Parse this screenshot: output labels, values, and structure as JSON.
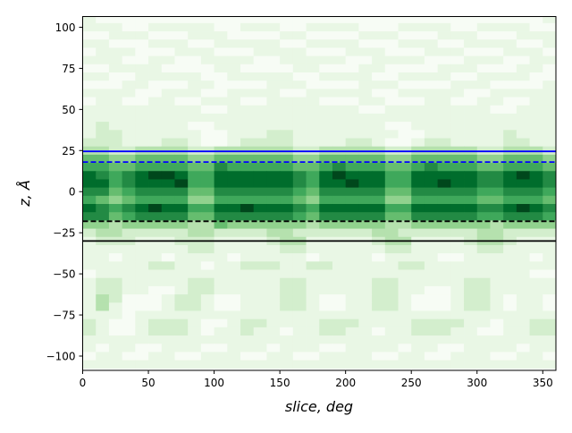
{
  "chart_data": {
    "type": "heatmap",
    "colormap": "Greens",
    "xlabel": "slice, deg",
    "ylabel": "z, Å",
    "xlim": [
      0,
      360
    ],
    "ylim": [
      -108.7,
      106.5
    ],
    "xticks": [
      0,
      50,
      100,
      150,
      200,
      250,
      300,
      350
    ],
    "yticks": [
      -100,
      -75,
      -50,
      -25,
      0,
      25,
      50,
      75,
      100
    ],
    "x_bin_width": 10,
    "z_bin_width": 5,
    "z_bins_top_to_bottom": [
      105,
      100,
      95,
      90,
      85,
      80,
      75,
      70,
      65,
      60,
      55,
      50,
      45,
      40,
      35,
      30,
      25,
      20,
      15,
      10,
      5,
      0,
      -5,
      -10,
      -15,
      -20,
      -25,
      -30,
      -35,
      -40,
      -45,
      -50,
      -55,
      -60,
      -65,
      -70,
      -75,
      -80,
      -85,
      -90,
      -95,
      -100,
      -105
    ],
    "value_scale": [
      0,
      9
    ],
    "values": [
      [
        1,
        0,
        0,
        0,
        0,
        0,
        0,
        0,
        0,
        0,
        0,
        0,
        0,
        0,
        0,
        0,
        0,
        0,
        0,
        0,
        0,
        0,
        0,
        0,
        0,
        0,
        0,
        0,
        0,
        0,
        0,
        0,
        0,
        0,
        0,
        1
      ],
      [
        1,
        1,
        1,
        0,
        0,
        1,
        1,
        1,
        1,
        1,
        0,
        0,
        1,
        1,
        1,
        0,
        0,
        1,
        1,
        1,
        1,
        0,
        0,
        0,
        1,
        1,
        1,
        1,
        0,
        0,
        1,
        1,
        1,
        1,
        0,
        0
      ],
      [
        0,
        0,
        1,
        1,
        1,
        0,
        0,
        0,
        1,
        1,
        1,
        0,
        0,
        0,
        0,
        1,
        1,
        0,
        0,
        0,
        0,
        1,
        1,
        1,
        0,
        0,
        0,
        1,
        1,
        1,
        0,
        0,
        0,
        1,
        1,
        1
      ],
      [
        1,
        1,
        0,
        0,
        0,
        1,
        1,
        1,
        0,
        0,
        1,
        1,
        1,
        1,
        1,
        0,
        0,
        1,
        1,
        1,
        1,
        0,
        0,
        0,
        1,
        1,
        1,
        0,
        0,
        1,
        1,
        1,
        1,
        0,
        0,
        1
      ],
      [
        0,
        1,
        1,
        1,
        0,
        0,
        0,
        1,
        1,
        1,
        0,
        0,
        0,
        1,
        1,
        1,
        1,
        0,
        0,
        0,
        1,
        1,
        1,
        0,
        0,
        0,
        1,
        1,
        1,
        0,
        0,
        0,
        1,
        1,
        1,
        0
      ],
      [
        1,
        1,
        1,
        0,
        0,
        1,
        1,
        0,
        0,
        1,
        1,
        1,
        1,
        0,
        0,
        1,
        1,
        1,
        1,
        1,
        0,
        0,
        1,
        1,
        1,
        1,
        0,
        0,
        0,
        1,
        1,
        1,
        0,
        0,
        1,
        1
      ],
      [
        0,
        0,
        1,
        1,
        1,
        1,
        0,
        0,
        0,
        0,
        1,
        1,
        0,
        0,
        0,
        0,
        1,
        1,
        0,
        0,
        0,
        1,
        1,
        0,
        0,
        0,
        0,
        1,
        1,
        1,
        0,
        0,
        0,
        1,
        1,
        0
      ],
      [
        1,
        1,
        0,
        0,
        1,
        1,
        1,
        1,
        1,
        0,
        0,
        1,
        1,
        1,
        1,
        1,
        0,
        0,
        1,
        1,
        1,
        1,
        0,
        0,
        1,
        1,
        1,
        1,
        0,
        0,
        1,
        1,
        1,
        1,
        0,
        0
      ],
      [
        0,
        0,
        0,
        1,
        1,
        0,
        0,
        0,
        1,
        1,
        0,
        0,
        0,
        0,
        1,
        1,
        1,
        0,
        0,
        0,
        0,
        1,
        1,
        1,
        0,
        0,
        0,
        0,
        1,
        1,
        1,
        0,
        0,
        0,
        0,
        1
      ],
      [
        1,
        1,
        1,
        1,
        0,
        0,
        1,
        1,
        1,
        0,
        0,
        1,
        1,
        1,
        1,
        0,
        0,
        1,
        1,
        1,
        1,
        1,
        0,
        0,
        1,
        1,
        1,
        1,
        1,
        0,
        0,
        1,
        1,
        1,
        1,
        1
      ],
      [
        0,
        1,
        1,
        0,
        0,
        1,
        1,
        0,
        0,
        1,
        1,
        1,
        0,
        0,
        1,
        1,
        1,
        1,
        0,
        0,
        0,
        1,
        1,
        0,
        0,
        0,
        1,
        1,
        0,
        0,
        1,
        1,
        0,
        0,
        1,
        1
      ],
      [
        1,
        1,
        1,
        1,
        1,
        1,
        1,
        1,
        1,
        0,
        0,
        1,
        1,
        1,
        1,
        1,
        1,
        1,
        1,
        1,
        1,
        0,
        0,
        1,
        1,
        1,
        1,
        1,
        1,
        1,
        1,
        0,
        0,
        1,
        1,
        1
      ],
      [
        1,
        1,
        1,
        1,
        1,
        1,
        1,
        1,
        1,
        1,
        1,
        1,
        1,
        1,
        1,
        1,
        1,
        1,
        1,
        1,
        1,
        1,
        1,
        1,
        1,
        1,
        1,
        1,
        1,
        1,
        1,
        1,
        1,
        1,
        1,
        1
      ],
      [
        1,
        2,
        1,
        1,
        1,
        1,
        1,
        1,
        0,
        0,
        1,
        1,
        1,
        1,
        1,
        1,
        1,
        1,
        1,
        1,
        1,
        1,
        1,
        0,
        0,
        1,
        1,
        1,
        1,
        1,
        1,
        1,
        1,
        1,
        1,
        1
      ],
      [
        1,
        2,
        2,
        1,
        1,
        1,
        1,
        1,
        1,
        0,
        0,
        1,
        1,
        1,
        2,
        2,
        1,
        1,
        1,
        1,
        1,
        1,
        1,
        1,
        0,
        0,
        1,
        1,
        1,
        1,
        1,
        1,
        2,
        1,
        1,
        1
      ],
      [
        2,
        2,
        2,
        1,
        1,
        1,
        2,
        2,
        1,
        0,
        0,
        1,
        2,
        2,
        2,
        2,
        1,
        1,
        1,
        1,
        2,
        2,
        1,
        0,
        0,
        1,
        2,
        2,
        1,
        1,
        1,
        1,
        2,
        2,
        1,
        1
      ],
      [
        3,
        3,
        2,
        2,
        3,
        3,
        3,
        3,
        2,
        2,
        3,
        3,
        3,
        3,
        3,
        3,
        2,
        2,
        3,
        3,
        3,
        3,
        3,
        2,
        2,
        3,
        3,
        3,
        3,
        3,
        2,
        2,
        3,
        3,
        3,
        2
      ],
      [
        5,
        5,
        4,
        4,
        5,
        5,
        5,
        5,
        4,
        4,
        5,
        5,
        5,
        5,
        5,
        5,
        4,
        4,
        5,
        5,
        5,
        5,
        5,
        4,
        4,
        5,
        5,
        5,
        5,
        5,
        4,
        4,
        5,
        5,
        5,
        4
      ],
      [
        6,
        6,
        5,
        5,
        6,
        6,
        6,
        6,
        5,
        5,
        7,
        6,
        6,
        6,
        6,
        6,
        5,
        5,
        6,
        7,
        6,
        6,
        6,
        5,
        5,
        6,
        7,
        6,
        6,
        6,
        5,
        5,
        6,
        6,
        6,
        5
      ],
      [
        8,
        7,
        6,
        7,
        8,
        9,
        9,
        8,
        6,
        6,
        8,
        8,
        8,
        8,
        8,
        8,
        7,
        6,
        8,
        9,
        8,
        8,
        8,
        6,
        6,
        8,
        8,
        8,
        8,
        8,
        7,
        7,
        8,
        9,
        8,
        7
      ],
      [
        8,
        8,
        6,
        7,
        8,
        8,
        8,
        9,
        6,
        6,
        8,
        8,
        8,
        8,
        8,
        8,
        7,
        6,
        8,
        8,
        9,
        8,
        8,
        6,
        6,
        8,
        8,
        9,
        8,
        8,
        7,
        7,
        8,
        8,
        8,
        7
      ],
      [
        7,
        7,
        5,
        6,
        7,
        7,
        7,
        7,
        5,
        5,
        7,
        7,
        7,
        7,
        7,
        7,
        6,
        5,
        7,
        7,
        7,
        7,
        7,
        5,
        5,
        7,
        7,
        7,
        7,
        7,
        6,
        6,
        7,
        7,
        7,
        6
      ],
      [
        6,
        5,
        4,
        5,
        6,
        6,
        6,
        6,
        4,
        4,
        6,
        6,
        6,
        6,
        6,
        6,
        5,
        4,
        6,
        6,
        6,
        6,
        6,
        4,
        4,
        6,
        6,
        6,
        6,
        6,
        5,
        5,
        6,
        6,
        6,
        5
      ],
      [
        8,
        7,
        6,
        7,
        8,
        9,
        8,
        8,
        6,
        6,
        8,
        8,
        9,
        8,
        8,
        8,
        7,
        6,
        8,
        8,
        8,
        8,
        8,
        6,
        6,
        8,
        8,
        8,
        8,
        8,
        7,
        7,
        8,
        9,
        8,
        7
      ],
      [
        7,
        7,
        5,
        6,
        7,
        7,
        7,
        7,
        5,
        5,
        7,
        7,
        7,
        7,
        7,
        7,
        6,
        5,
        7,
        7,
        7,
        7,
        7,
        5,
        5,
        7,
        7,
        7,
        7,
        7,
        6,
        6,
        7,
        7,
        7,
        6
      ],
      [
        4,
        4,
        3,
        4,
        4,
        4,
        4,
        4,
        3,
        3,
        5,
        4,
        4,
        4,
        4,
        4,
        4,
        3,
        4,
        4,
        4,
        4,
        4,
        3,
        3,
        4,
        4,
        4,
        4,
        4,
        4,
        3,
        4,
        4,
        4,
        4
      ],
      [
        2,
        3,
        3,
        2,
        2,
        2,
        2,
        2,
        3,
        3,
        2,
        2,
        2,
        2,
        3,
        3,
        2,
        2,
        2,
        2,
        2,
        2,
        3,
        3,
        2,
        2,
        2,
        2,
        2,
        2,
        3,
        3,
        2,
        2,
        2,
        2
      ],
      [
        1,
        2,
        2,
        2,
        1,
        1,
        1,
        2,
        2,
        2,
        1,
        1,
        1,
        1,
        2,
        3,
        3,
        1,
        1,
        1,
        1,
        1,
        2,
        3,
        3,
        1,
        1,
        1,
        1,
        2,
        3,
        3,
        2,
        1,
        1,
        1
      ],
      [
        1,
        1,
        1,
        1,
        1,
        1,
        1,
        1,
        2,
        2,
        1,
        1,
        1,
        1,
        1,
        2,
        2,
        1,
        1,
        1,
        1,
        1,
        1,
        2,
        2,
        1,
        1,
        1,
        1,
        1,
        2,
        2,
        1,
        1,
        1,
        1
      ],
      [
        1,
        1,
        0,
        1,
        1,
        1,
        0,
        1,
        1,
        1,
        1,
        0,
        1,
        1,
        1,
        1,
        1,
        0,
        1,
        1,
        1,
        1,
        0,
        1,
        1,
        1,
        1,
        0,
        0,
        1,
        1,
        1,
        1,
        1,
        0,
        1
      ],
      [
        1,
        1,
        1,
        1,
        1,
        2,
        2,
        1,
        1,
        0,
        1,
        1,
        2,
        2,
        2,
        1,
        1,
        2,
        2,
        1,
        1,
        1,
        1,
        1,
        2,
        2,
        1,
        1,
        1,
        1,
        1,
        1,
        1,
        1,
        1,
        1
      ],
      [
        0,
        1,
        1,
        1,
        1,
        1,
        1,
        1,
        1,
        1,
        1,
        1,
        1,
        1,
        1,
        1,
        1,
        1,
        1,
        1,
        1,
        1,
        1,
        1,
        1,
        1,
        1,
        1,
        1,
        1,
        1,
        1,
        1,
        1,
        0,
        0
      ],
      [
        1,
        2,
        2,
        1,
        1,
        1,
        1,
        1,
        2,
        2,
        1,
        1,
        1,
        1,
        1,
        2,
        2,
        1,
        1,
        1,
        1,
        1,
        2,
        2,
        1,
        1,
        1,
        1,
        1,
        2,
        2,
        1,
        1,
        1,
        1,
        1
      ],
      [
        1,
        2,
        2,
        1,
        1,
        0,
        0,
        1,
        2,
        2,
        1,
        1,
        1,
        1,
        1,
        2,
        2,
        1,
        1,
        1,
        1,
        1,
        2,
        2,
        1,
        1,
        0,
        0,
        1,
        2,
        2,
        1,
        1,
        1,
        1,
        1
      ],
      [
        1,
        3,
        2,
        0,
        0,
        0,
        1,
        2,
        2,
        1,
        0,
        0,
        1,
        1,
        1,
        2,
        2,
        1,
        0,
        0,
        1,
        1,
        2,
        2,
        1,
        0,
        0,
        0,
        1,
        2,
        2,
        1,
        0,
        1,
        1,
        0
      ],
      [
        1,
        3,
        1,
        0,
        0,
        0,
        1,
        2,
        2,
        1,
        0,
        0,
        1,
        1,
        1,
        2,
        2,
        1,
        0,
        0,
        1,
        1,
        2,
        2,
        1,
        0,
        0,
        0,
        1,
        2,
        2,
        1,
        0,
        1,
        1,
        0
      ],
      [
        1,
        1,
        1,
        0,
        1,
        1,
        1,
        1,
        1,
        1,
        1,
        1,
        1,
        1,
        1,
        1,
        1,
        1,
        1,
        1,
        1,
        1,
        1,
        1,
        1,
        1,
        1,
        1,
        1,
        1,
        1,
        1,
        1,
        1,
        1,
        1
      ],
      [
        2,
        1,
        0,
        0,
        1,
        2,
        2,
        2,
        1,
        0,
        0,
        1,
        2,
        2,
        1,
        1,
        1,
        1,
        2,
        2,
        2,
        1,
        1,
        1,
        1,
        2,
        2,
        2,
        2,
        1,
        1,
        0,
        1,
        1,
        2,
        2
      ],
      [
        2,
        1,
        0,
        0,
        1,
        2,
        2,
        2,
        1,
        0,
        1,
        1,
        2,
        1,
        1,
        0,
        1,
        1,
        2,
        2,
        1,
        1,
        0,
        1,
        1,
        2,
        2,
        2,
        1,
        1,
        0,
        0,
        1,
        1,
        2,
        2
      ],
      [
        1,
        1,
        1,
        1,
        1,
        1,
        1,
        1,
        1,
        1,
        1,
        1,
        1,
        1,
        1,
        1,
        1,
        1,
        1,
        1,
        1,
        1,
        1,
        1,
        1,
        1,
        1,
        1,
        1,
        1,
        1,
        1,
        1,
        1,
        1,
        1
      ],
      [
        1,
        0,
        1,
        1,
        0,
        0,
        1,
        1,
        1,
        0,
        0,
        1,
        1,
        1,
        0,
        1,
        1,
        1,
        0,
        0,
        1,
        1,
        1,
        1,
        0,
        1,
        1,
        0,
        0,
        1,
        1,
        1,
        1,
        0,
        1,
        1
      ],
      [
        0,
        1,
        1,
        0,
        0,
        1,
        1,
        0,
        0,
        1,
        1,
        1,
        0,
        0,
        1,
        1,
        0,
        0,
        1,
        1,
        1,
        1,
        0,
        0,
        1,
        1,
        0,
        0,
        1,
        1,
        1,
        0,
        0,
        1,
        1,
        0
      ],
      [
        1,
        1,
        1,
        1,
        1,
        1,
        1,
        1,
        1,
        1,
        1,
        1,
        1,
        1,
        1,
        1,
        1,
        1,
        1,
        1,
        1,
        1,
        1,
        1,
        1,
        1,
        1,
        1,
        1,
        1,
        1,
        1,
        1,
        1,
        1,
        1
      ]
    ],
    "hlines": [
      {
        "z": 24.5,
        "color": "#0000ff",
        "style": "solid"
      },
      {
        "z": 18,
        "color": "#0000ff",
        "style": "dashed"
      },
      {
        "z": -18,
        "color": "#000000",
        "style": "dashed"
      },
      {
        "z": -30,
        "color": "#000000",
        "style": "solid"
      }
    ]
  },
  "colors": [
    "#f7fcf5",
    "#e9f7e5",
    "#d3eecd",
    "#b5e1ae",
    "#91d28e",
    "#66bd6f",
    "#3fa85b",
    "#228a44",
    "#006d2c",
    "#00471c"
  ]
}
